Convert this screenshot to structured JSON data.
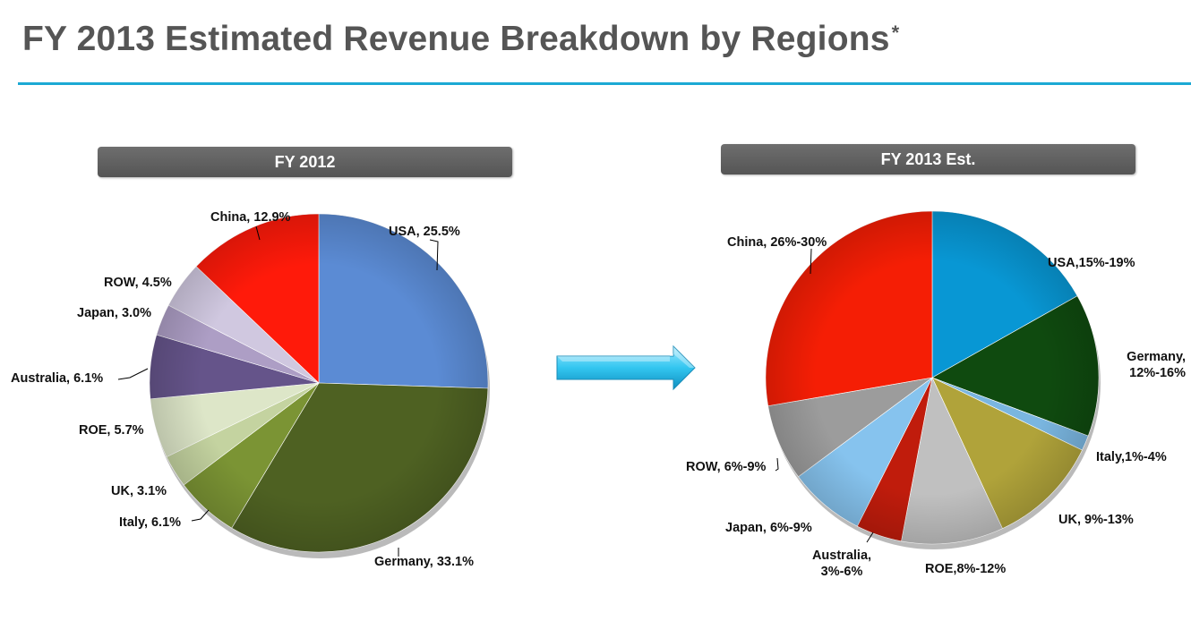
{
  "page": {
    "title": "FY 2013 Estimated Revenue Breakdown by Regions",
    "title_mark": "*"
  },
  "colors": {
    "accent_rule": "#1ca9d4",
    "header_bg": "#606060",
    "arrow": "#33c6f0"
  },
  "chart_data": [
    {
      "type": "pie",
      "title": "FY 2012",
      "slices": [
        {
          "label": "USA, 25.5%",
          "region": "USA",
          "value": 25.5,
          "color": "#5b8bd4"
        },
        {
          "label": "Germany, 33.1%",
          "region": "Germany",
          "value": 33.1,
          "color": "#4e6122"
        },
        {
          "label": "Italy, 6.1%",
          "region": "Italy",
          "value": 6.1,
          "color": "#7b9434"
        },
        {
          "label": "UK, 3.1%",
          "region": "UK",
          "value": 3.1,
          "color": "#c4d3a0"
        },
        {
          "label": "ROE, 5.7%",
          "region": "ROE",
          "value": 5.7,
          "color": "#dde6c8"
        },
        {
          "label": "Australia, 6.1%",
          "region": "Australia",
          "value": 6.1,
          "color": "#65548a"
        },
        {
          "label": "Japan, 3.0%",
          "region": "Japan",
          "value": 3.0,
          "color": "#ad9ec5"
        },
        {
          "label": "ROW, 4.5%",
          "region": "ROW",
          "value": 4.5,
          "color": "#d0c8e0"
        },
        {
          "label": "China, 12.9%",
          "region": "China",
          "value": 12.9,
          "color": "#ff1a0a"
        }
      ]
    },
    {
      "type": "pie",
      "title": "FY 2013 Est.",
      "slices": [
        {
          "label": "USA,15%-19%",
          "region": "USA",
          "value": 17,
          "range": [
            15,
            19
          ],
          "color": "#0897d4"
        },
        {
          "label": "Germany,\n12%-16%",
          "region": "Germany",
          "value": 14,
          "range": [
            12,
            16
          ],
          "color": "#0f4a0f"
        },
        {
          "label": "Italy,1%-4%",
          "region": "Italy",
          "value": 1.5,
          "range": [
            1,
            4
          ],
          "color": "#7ab6e0"
        },
        {
          "label": "UK, 9%-13%",
          "region": "UK",
          "value": 11,
          "range": [
            9,
            13
          ],
          "color": "#b0a33a"
        },
        {
          "label": "ROE,8%-12%",
          "region": "ROE",
          "value": 10,
          "range": [
            8,
            12
          ],
          "color": "#c0c0c0"
        },
        {
          "label": "Australia,\n3%-6%",
          "region": "Australia",
          "value": 4.5,
          "range": [
            3,
            6
          ],
          "color": "#c01c0c"
        },
        {
          "label": "Japan, 6%-9%",
          "region": "Japan",
          "value": 7.5,
          "range": [
            6,
            9
          ],
          "color": "#86c3ee"
        },
        {
          "label": "ROW, 6%-9%",
          "region": "ROW",
          "value": 7.5,
          "range": [
            6,
            9
          ],
          "color": "#9c9c9c"
        },
        {
          "label": "China, 26%-30%",
          "region": "China",
          "value": 28,
          "range": [
            26,
            30
          ],
          "color": "#f51e05"
        }
      ]
    }
  ]
}
